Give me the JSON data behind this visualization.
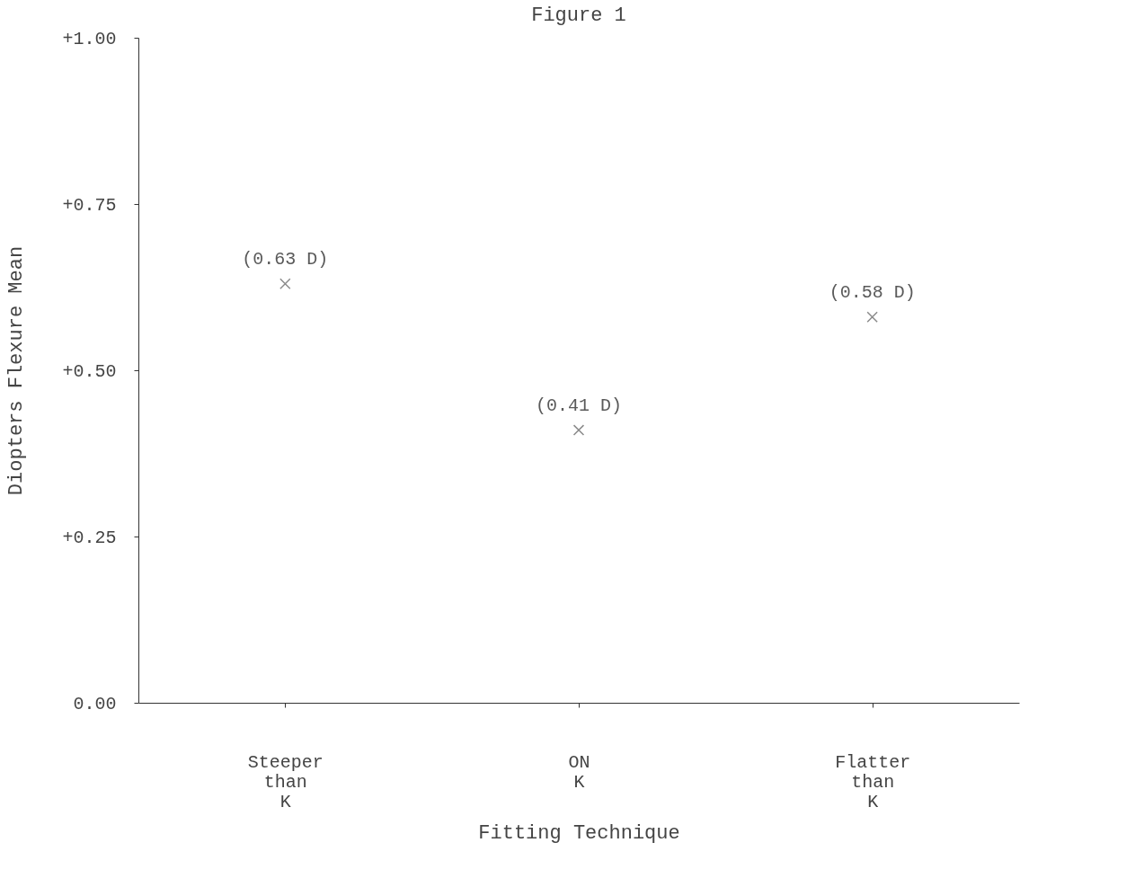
{
  "chart_data": {
    "type": "scatter",
    "title": "Figure 1",
    "xlabel": "Fitting Technique",
    "ylabel": "Diopters Flexure Mean",
    "categories": [
      "Steeper\nthan\nK",
      "ON\nK",
      "Flatter\nthan\nK"
    ],
    "series": [
      {
        "color": "#5a5a5a",
        "values": [
          0.63,
          0.41,
          0.58
        ],
        "value_labels": [
          "(0.63 D)",
          "(0.41 D)",
          "(0.58 D)"
        ]
      }
    ],
    "ylim": [
      0,
      1.0
    ],
    "yticks": [
      {
        "value": 0,
        "label": "0.00"
      },
      {
        "value": 0.25,
        "label": "+0.25"
      },
      {
        "value": 0.5,
        "label": "+0.50"
      },
      {
        "value": 0.75,
        "label": "+0.75"
      },
      {
        "value": 1.0,
        "label": "+1.00"
      }
    ],
    "marker": "cross",
    "grid": false
  }
}
